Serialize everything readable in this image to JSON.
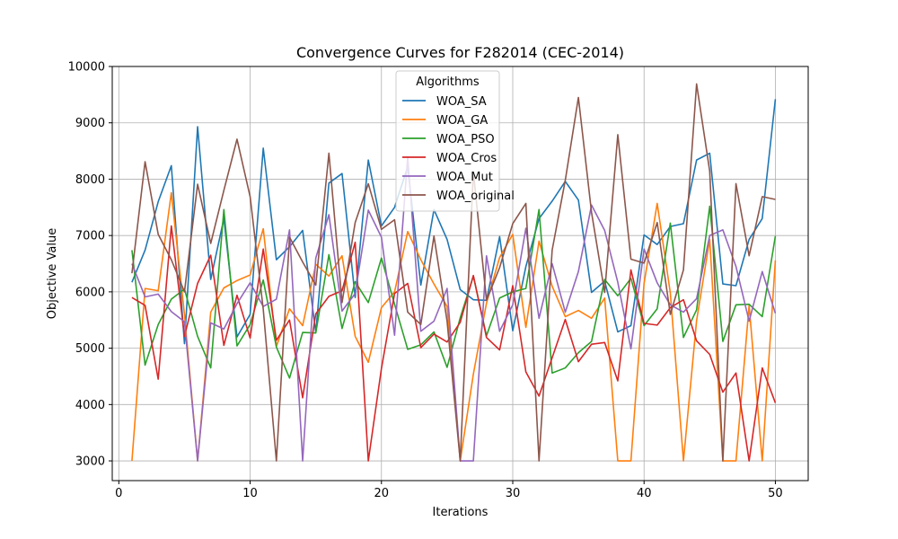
{
  "chart_data": {
    "type": "line",
    "title": "Convergence Curves for F282014 (CEC-2014)",
    "xlabel": "Iterations",
    "ylabel": "Objective Value",
    "xlim": [
      -0.5,
      52.5
    ],
    "ylim": [
      2650,
      10000
    ],
    "xticks": [
      0,
      10,
      20,
      30,
      40,
      50
    ],
    "yticks": [
      3000,
      4000,
      5000,
      6000,
      7000,
      8000,
      9000,
      10000
    ],
    "grid": true,
    "legend": {
      "title": "Algorithms",
      "placement": "top-center"
    },
    "x": [
      1,
      2,
      3,
      4,
      5,
      6,
      7,
      8,
      9,
      10,
      11,
      12,
      13,
      14,
      15,
      16,
      17,
      18,
      19,
      20,
      21,
      22,
      23,
      24,
      25,
      26,
      27,
      28,
      29,
      30,
      31,
      32,
      33,
      34,
      35,
      36,
      37,
      38,
      39,
      40,
      41,
      42,
      43,
      44,
      45,
      46,
      47,
      48,
      49,
      50
    ],
    "series": [
      {
        "name": "WOA_SA",
        "color": "#1f77b4",
        "values": [
          6170,
          6740,
          7600,
          8240,
          5080,
          8930,
          6220,
          7300,
          5200,
          5600,
          8550,
          6570,
          6800,
          7090,
          5280,
          7930,
          8100,
          5900,
          8340,
          7170,
          7500,
          8220,
          6120,
          7460,
          6930,
          6040,
          5860,
          5850,
          6980,
          5310,
          6450,
          7300,
          7610,
          7960,
          7630,
          5990,
          6190,
          5290,
          5400,
          7010,
          6840,
          7160,
          7210,
          8340,
          8460,
          6140,
          6110,
          6930,
          7300,
          9420
        ]
      },
      {
        "name": "WOA_GA",
        "color": "#ff7f0e",
        "values": [
          3000,
          6060,
          6020,
          7760,
          5600,
          3000,
          5640,
          6070,
          6200,
          6300,
          7120,
          5030,
          5700,
          5400,
          6490,
          6280,
          6640,
          5210,
          4750,
          5720,
          6000,
          7070,
          6570,
          6140,
          5740,
          3000,
          4540,
          5800,
          6610,
          7020,
          5370,
          6900,
          6100,
          5560,
          5670,
          5530,
          5890,
          3000,
          3000,
          6150,
          7570,
          5980,
          3000,
          5490,
          6930,
          3000,
          3000,
          5760,
          3000,
          6560
        ]
      },
      {
        "name": "WOA_PSO",
        "color": "#2ca02c",
        "values": [
          6740,
          4700,
          5420,
          5870,
          6050,
          5210,
          4650,
          7460,
          5040,
          5420,
          6210,
          5020,
          4470,
          5280,
          5270,
          6660,
          5350,
          6180,
          5810,
          6600,
          5780,
          4980,
          5060,
          5290,
          4660,
          5540,
          6280,
          5220,
          5890,
          6000,
          6060,
          7460,
          4560,
          4650,
          4920,
          5120,
          6220,
          5930,
          6240,
          5400,
          5700,
          7220,
          5190,
          5680,
          7520,
          5120,
          5770,
          5780,
          5560,
          6990
        ]
      },
      {
        "name": "WOA_Cros",
        "color": "#d62728",
        "values": [
          5900,
          5760,
          4450,
          7170,
          5210,
          6150,
          6650,
          5050,
          5940,
          5180,
          6760,
          5140,
          5500,
          4120,
          5610,
          5920,
          6020,
          6880,
          3000,
          4640,
          5970,
          6150,
          5010,
          5250,
          5110,
          5460,
          6290,
          5190,
          4970,
          6110,
          4580,
          4150,
          4830,
          5510,
          4760,
          5070,
          5100,
          4420,
          6390,
          5440,
          5410,
          5720,
          5860,
          5130,
          4890,
          4220,
          4560,
          3000,
          4650,
          4030
        ]
      },
      {
        "name": "WOA_Mut",
        "color": "#9467bd",
        "values": [
          6500,
          5910,
          5960,
          5650,
          5470,
          3000,
          5450,
          5340,
          5790,
          6160,
          5740,
          5870,
          7100,
          3000,
          6600,
          7370,
          5660,
          5970,
          7450,
          6970,
          5230,
          8400,
          5300,
          5480,
          6060,
          3000,
          3000,
          6640,
          5300,
          5770,
          7130,
          5530,
          6500,
          5640,
          6360,
          7540,
          7090,
          6170,
          4990,
          6760,
          6160,
          5770,
          5640,
          5880,
          7000,
          7100,
          6450,
          5480,
          6360,
          5620
        ]
      },
      {
        "name": "WOA_original",
        "color": "#8c564b",
        "values": [
          6330,
          8310,
          7020,
          6570,
          6000,
          7910,
          6860,
          7800,
          8710,
          7690,
          5690,
          3000,
          6970,
          6530,
          6120,
          8460,
          5810,
          7230,
          7920,
          7110,
          7280,
          5640,
          5420,
          6990,
          5480,
          3000,
          8130,
          5850,
          6430,
          7210,
          7570,
          3000,
          6740,
          7980,
          9450,
          7410,
          5990,
          8790,
          6580,
          6510,
          7230,
          5600,
          6390,
          9690,
          8140,
          3000,
          7920,
          6640,
          7690,
          7640
        ]
      }
    ]
  }
}
